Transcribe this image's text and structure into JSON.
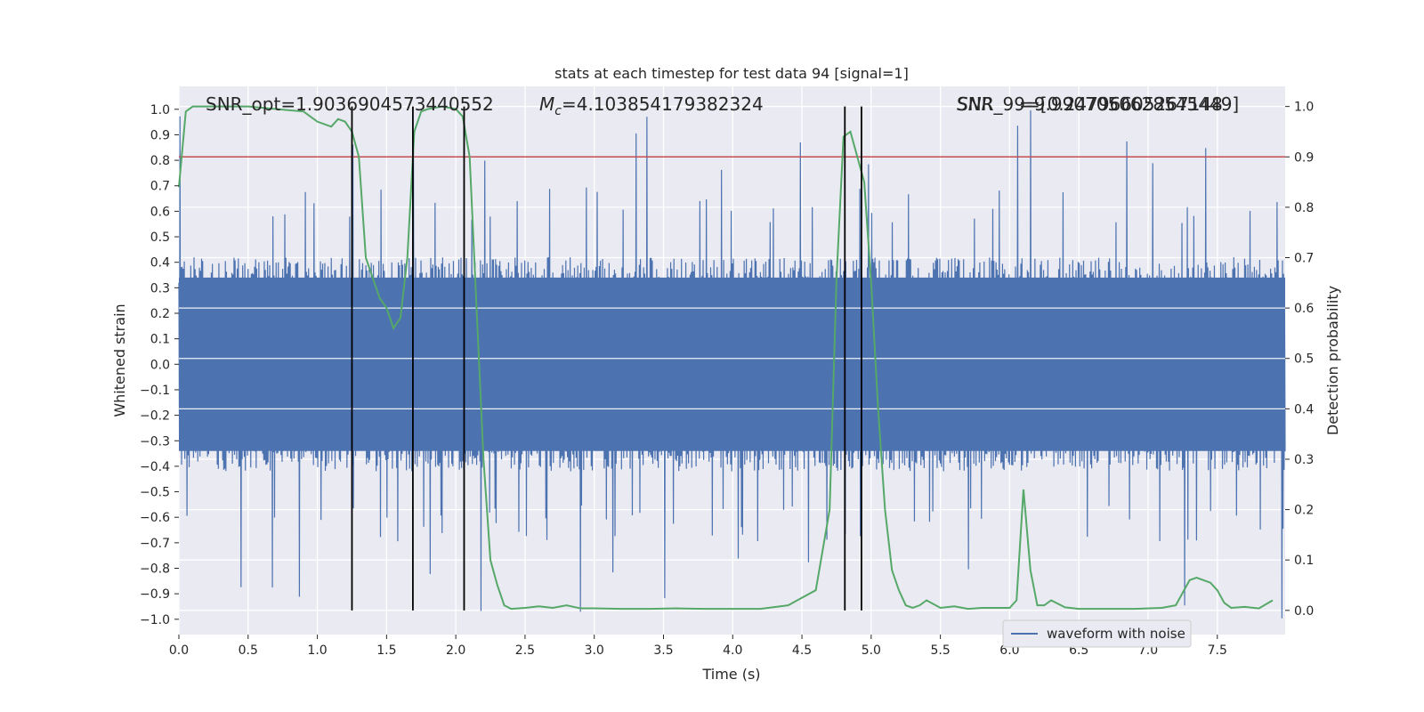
{
  "chart_data": {
    "type": "line",
    "title": "stats at each timestep for test data 94 [signal=1]",
    "xlabel": "Time (s)",
    "ylabel_left": "Whitened strain",
    "ylabel_right": "Detection probability",
    "xlim": [
      0.0,
      7.99
    ],
    "ylim_left": [
      -1.06,
      1.09
    ],
    "ylim_right": [
      -0.048,
      1.04
    ],
    "x_ticks": [
      "0.0",
      "0.5",
      "1.0",
      "1.5",
      "2.0",
      "2.5",
      "3.0",
      "3.5",
      "4.0",
      "4.5",
      "5.0",
      "5.5",
      "6.0",
      "6.5",
      "7.0",
      "7.5"
    ],
    "x_tick_values": [
      0.0,
      0.5,
      1.0,
      1.5,
      2.0,
      2.5,
      3.0,
      3.5,
      4.0,
      4.5,
      5.0,
      5.5,
      6.0,
      6.5,
      7.0,
      7.5
    ],
    "y_left_ticks": [
      "1.0",
      "0.9",
      "0.8",
      "0.7",
      "0.6",
      "0.5",
      "0.4",
      "0.3",
      "0.2",
      "0.1",
      "0.0",
      "−0.1",
      "−0.2",
      "−0.3",
      "−0.4",
      "−0.5",
      "−0.6",
      "−0.7",
      "−0.8",
      "−0.9",
      "−1.0"
    ],
    "y_left_tick_values": [
      1.0,
      0.9,
      0.8,
      0.7,
      0.6,
      0.5,
      0.4,
      0.3,
      0.2,
      0.1,
      0.0,
      -0.1,
      -0.2,
      -0.3,
      -0.4,
      -0.5,
      -0.6,
      -0.7,
      -0.8,
      -0.9,
      -1.0
    ],
    "y_right_ticks": [
      "1.0",
      "0.9",
      "0.8",
      "0.7",
      "0.6",
      "0.5",
      "0.4",
      "0.3",
      "0.2",
      "0.1",
      "0.0"
    ],
    "y_right_tick_values": [
      1.0,
      0.9,
      0.8,
      0.7,
      0.6,
      0.5,
      0.4,
      0.3,
      0.2,
      0.1,
      0.0
    ],
    "annotations": {
      "snr_opt": "SNR_opt=1.9036904573440552",
      "mc": "=4.103854179382324",
      "mc_symbol": "M",
      "mc_sub": "c",
      "overlap_a": "SNR_99=[0.24796605267148",
      "overlap_b": "SNR",
      "overlap_c": "=9.9907050628545449]"
    },
    "threshold": {
      "value": 0.9,
      "color": "#c44e52"
    },
    "vertical_lines_x": [
      1.25,
      1.69,
      2.06,
      4.81,
      4.93
    ],
    "series": [
      {
        "name": "waveform with noise",
        "axis": "left",
        "color": "#4c72b0",
        "kind": "noise",
        "seed": 94,
        "n_samples": 2048,
        "envelope_typical": 0.42,
        "envelope_peak": 1.0
      },
      {
        "name": "detection probability",
        "axis": "right",
        "color": "#55a868",
        "x": [
          0.0,
          0.05,
          0.1,
          0.2,
          0.3,
          0.5,
          0.7,
          0.9,
          1.0,
          1.1,
          1.15,
          1.2,
          1.25,
          1.3,
          1.35,
          1.4,
          1.45,
          1.5,
          1.55,
          1.6,
          1.65,
          1.7,
          1.75,
          1.8,
          1.9,
          2.0,
          2.05,
          2.1,
          2.15,
          2.2,
          2.25,
          2.3,
          2.35,
          2.4,
          2.5,
          2.6,
          2.7,
          2.8,
          2.9,
          3.0,
          3.2,
          3.4,
          3.6,
          3.8,
          4.0,
          4.2,
          4.4,
          4.5,
          4.6,
          4.7,
          4.75,
          4.8,
          4.85,
          4.9,
          4.95,
          5.0,
          5.05,
          5.1,
          5.15,
          5.2,
          5.25,
          5.3,
          5.35,
          5.4,
          5.5,
          5.6,
          5.7,
          5.8,
          5.95,
          6.0,
          6.05,
          6.1,
          6.15,
          6.2,
          6.25,
          6.3,
          6.4,
          6.5,
          6.7,
          6.9,
          7.1,
          7.2,
          7.3,
          7.35,
          7.45,
          7.5,
          7.55,
          7.6,
          7.7,
          7.8,
          7.9
        ],
        "values": [
          0.84,
          0.99,
          1.0,
          1.0,
          1.0,
          1.0,
          0.995,
          0.99,
          0.97,
          0.96,
          0.975,
          0.97,
          0.95,
          0.9,
          0.7,
          0.66,
          0.62,
          0.6,
          0.56,
          0.58,
          0.7,
          0.95,
          0.99,
          0.995,
          1.0,
          0.995,
          0.98,
          0.9,
          0.6,
          0.3,
          0.1,
          0.05,
          0.01,
          0.003,
          0.005,
          0.008,
          0.005,
          0.01,
          0.004,
          0.004,
          0.003,
          0.003,
          0.004,
          0.003,
          0.003,
          0.003,
          0.01,
          0.025,
          0.04,
          0.2,
          0.66,
          0.94,
          0.95,
          0.9,
          0.85,
          0.65,
          0.4,
          0.2,
          0.08,
          0.04,
          0.01,
          0.005,
          0.01,
          0.02,
          0.005,
          0.008,
          0.003,
          0.005,
          0.005,
          0.005,
          0.02,
          0.24,
          0.08,
          0.01,
          0.01,
          0.02,
          0.006,
          0.003,
          0.003,
          0.003,
          0.005,
          0.01,
          0.06,
          0.065,
          0.055,
          0.04,
          0.015,
          0.005,
          0.007,
          0.004,
          0.02
        ]
      }
    ],
    "legend": {
      "position": "bottom-right",
      "entries": [
        "waveform with noise"
      ]
    }
  }
}
